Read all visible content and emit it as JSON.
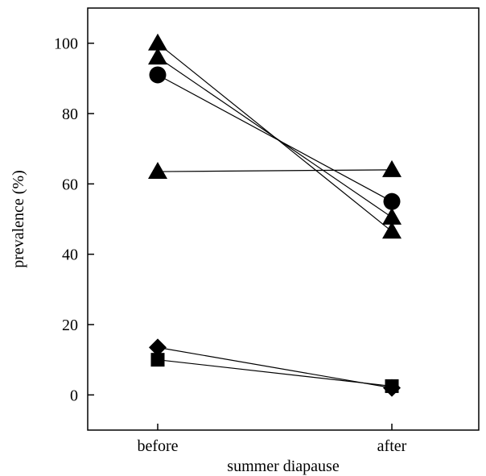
{
  "chart_data": {
    "type": "line",
    "categories": [
      "before",
      "after"
    ],
    "xlabel": "summer diapause",
    "ylabel": "prevalence (%)",
    "ylim": [
      -10,
      110
    ],
    "yticks": [
      0,
      20,
      40,
      60,
      80,
      100
    ],
    "grid": false,
    "series": [
      {
        "marker": "triangle",
        "values": [
          100,
          46.5
        ]
      },
      {
        "marker": "triangle",
        "values": [
          96,
          50.5
        ]
      },
      {
        "marker": "circle",
        "values": [
          91,
          55
        ]
      },
      {
        "marker": "triangle",
        "values": [
          63.5,
          64
        ]
      },
      {
        "marker": "diamond",
        "values": [
          13.5,
          2
        ]
      },
      {
        "marker": "square",
        "values": [
          10,
          2.5
        ]
      }
    ]
  }
}
